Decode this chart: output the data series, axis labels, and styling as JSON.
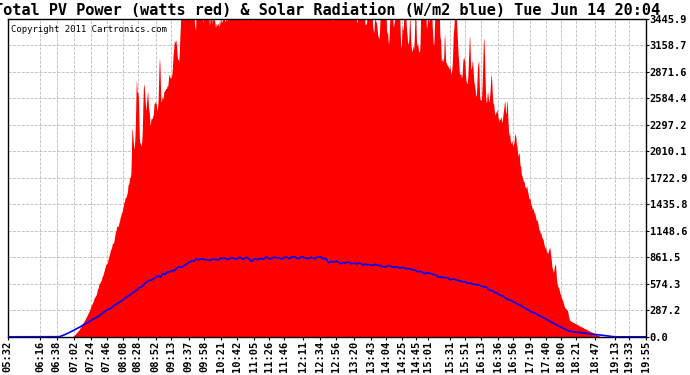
{
  "title": "Total PV Power (watts red) & Solar Radiation (W/m2 blue) Tue Jun 14 20:04",
  "copyright": "Copyright 2011 Cartronics.com",
  "y_max": 3445.9,
  "y_ticks": [
    0.0,
    287.2,
    574.3,
    861.5,
    1148.6,
    1435.8,
    1722.9,
    2010.1,
    2297.2,
    2584.4,
    2871.6,
    3158.7,
    3445.9
  ],
  "x_labels": [
    "05:32",
    "06:16",
    "06:38",
    "07:02",
    "07:24",
    "07:46",
    "08:08",
    "08:28",
    "08:52",
    "09:13",
    "09:37",
    "09:58",
    "10:21",
    "10:42",
    "11:05",
    "11:26",
    "11:46",
    "12:11",
    "12:34",
    "12:56",
    "13:20",
    "13:43",
    "14:04",
    "14:25",
    "14:45",
    "15:01",
    "15:31",
    "15:51",
    "16:13",
    "16:36",
    "16:56",
    "17:19",
    "17:40",
    "18:00",
    "18:21",
    "18:47",
    "19:13",
    "19:33",
    "19:55"
  ],
  "background_color": "#ffffff",
  "plot_bg_color": "#ffffff",
  "grid_color": "#bbbbbb",
  "fill_color": "#ff0000",
  "line_color": "#0000ff",
  "title_fontsize": 11,
  "tick_fontsize": 7.5,
  "pv_peak": 3445.9,
  "sr_peak": 861.5
}
